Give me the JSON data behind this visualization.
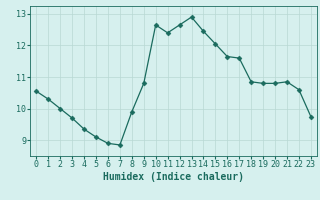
{
  "x": [
    0,
    1,
    2,
    3,
    4,
    5,
    6,
    7,
    8,
    9,
    10,
    11,
    12,
    13,
    14,
    15,
    16,
    17,
    18,
    19,
    20,
    21,
    22,
    23
  ],
  "y": [
    10.55,
    10.3,
    10.0,
    9.7,
    9.35,
    9.1,
    8.9,
    8.85,
    9.9,
    10.8,
    12.65,
    12.4,
    12.65,
    12.9,
    12.45,
    12.05,
    11.65,
    11.6,
    10.85,
    10.8,
    10.8,
    10.85,
    10.6,
    9.75
  ],
  "line_color": "#1a6b5e",
  "marker": "D",
  "marker_size": 2.5,
  "bg_color": "#d6f0ee",
  "grid_color": "#b8d8d4",
  "xlabel": "Humidex (Indice chaleur)",
  "ylabel": "",
  "xlim": [
    -0.5,
    23.5
  ],
  "ylim": [
    8.5,
    13.25
  ],
  "yticks": [
    9,
    10,
    11,
    12,
    13
  ],
  "xticks": [
    0,
    1,
    2,
    3,
    4,
    5,
    6,
    7,
    8,
    9,
    10,
    11,
    12,
    13,
    14,
    15,
    16,
    17,
    18,
    19,
    20,
    21,
    22,
    23
  ],
  "xtick_labels": [
    "0",
    "1",
    "2",
    "3",
    "4",
    "5",
    "6",
    "7",
    "8",
    "9",
    "10",
    "11",
    "12",
    "13",
    "14",
    "15",
    "16",
    "17",
    "18",
    "19",
    "20",
    "21",
    "22",
    "23"
  ],
  "label_fontsize": 7,
  "tick_fontsize": 6
}
